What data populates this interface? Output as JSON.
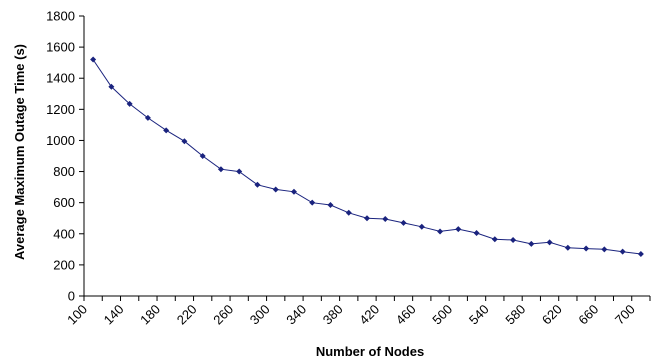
{
  "chart_data": {
    "type": "line",
    "xlabel": "Number of Nodes",
    "ylabel": "Average Maximum Outage Time (s)",
    "xlim": [
      100,
      720
    ],
    "ylim": [
      0,
      1800
    ],
    "yticks": [
      0,
      200,
      400,
      600,
      800,
      1000,
      1200,
      1400,
      1600,
      1800
    ],
    "xticks": [
      100,
      140,
      180,
      220,
      260,
      300,
      340,
      380,
      420,
      460,
      500,
      540,
      580,
      620,
      660,
      700
    ],
    "grid": false,
    "legend": "none",
    "series": [
      {
        "color": "#1a237e",
        "marker": "diamond",
        "x": [
          110,
          130,
          150,
          170,
          190,
          210,
          230,
          250,
          270,
          290,
          310,
          330,
          350,
          370,
          390,
          410,
          430,
          450,
          470,
          490,
          510,
          530,
          550,
          570,
          590,
          610,
          630,
          650,
          670,
          690,
          710
        ],
        "y": [
          1520,
          1345,
          1235,
          1145,
          1065,
          995,
          900,
          815,
          800,
          715,
          685,
          670,
          600,
          585,
          535,
          500,
          495,
          470,
          445,
          415,
          430,
          405,
          365,
          360,
          335,
          345,
          310,
          305,
          300,
          285,
          270
        ]
      }
    ]
  }
}
